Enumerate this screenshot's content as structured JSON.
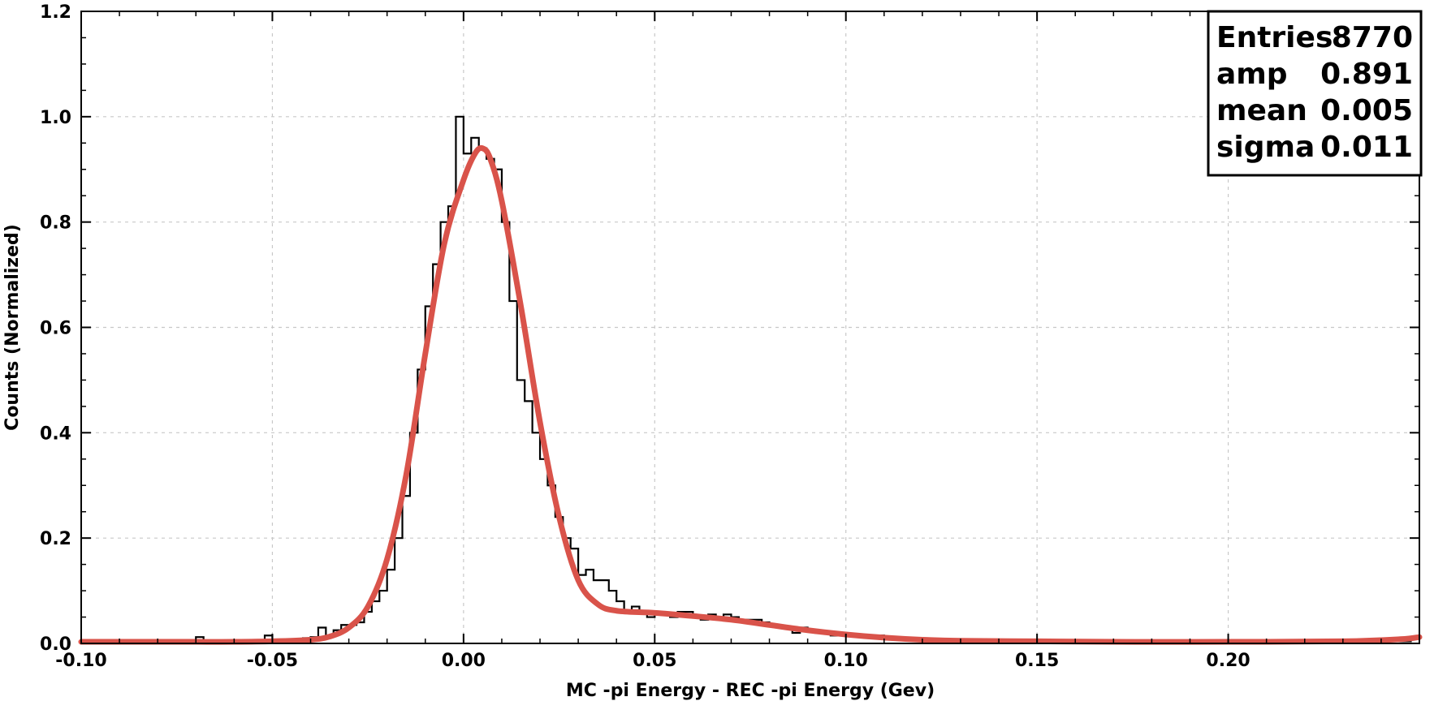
{
  "chart_data": {
    "type": "line",
    "xlabel": "MC -pi Energy - REC -pi Energy (Gev)",
    "ylabel": "Counts (Normalized)",
    "xlim": [
      -0.1,
      0.25
    ],
    "ylim": [
      0.0,
      1.2
    ],
    "x_ticks": [
      -0.1,
      -0.05,
      0.0,
      0.05,
      0.1,
      0.15,
      0.2
    ],
    "x_tick_labels": [
      "-0.10",
      "-0.05",
      "0.00",
      "0.05",
      "0.10",
      "0.15",
      "0.20"
    ],
    "y_ticks": [
      0.0,
      0.2,
      0.4,
      0.6,
      0.8,
      1.0,
      1.2
    ],
    "y_tick_labels": [
      "0.0",
      "0.2",
      "0.4",
      "0.6",
      "0.8",
      "1.0",
      "1.2"
    ],
    "grid": true,
    "histogram": {
      "bin_width": 0.002,
      "bin_centers": [
        -0.099,
        -0.097,
        -0.095,
        -0.093,
        -0.091,
        -0.089,
        -0.087,
        -0.085,
        -0.083,
        -0.081,
        -0.079,
        -0.077,
        -0.075,
        -0.073,
        -0.071,
        -0.069,
        -0.067,
        -0.065,
        -0.063,
        -0.061,
        -0.059,
        -0.057,
        -0.055,
        -0.053,
        -0.051,
        -0.049,
        -0.047,
        -0.045,
        -0.043,
        -0.041,
        -0.039,
        -0.037,
        -0.035,
        -0.033,
        -0.031,
        -0.029,
        -0.027,
        -0.025,
        -0.023,
        -0.021,
        -0.019,
        -0.017,
        -0.015,
        -0.013,
        -0.011,
        -0.009,
        -0.007,
        -0.005,
        -0.003,
        -0.001,
        0.001,
        0.003,
        0.005,
        0.007,
        0.009,
        0.011,
        0.013,
        0.015,
        0.017,
        0.019,
        0.021,
        0.023,
        0.025,
        0.027,
        0.029,
        0.031,
        0.033,
        0.035,
        0.037,
        0.039,
        0.041,
        0.043,
        0.045,
        0.047,
        0.049,
        0.051,
        0.053,
        0.055,
        0.057,
        0.059,
        0.061,
        0.063,
        0.065,
        0.067,
        0.069,
        0.071,
        0.073,
        0.075,
        0.077,
        0.079,
        0.081,
        0.083,
        0.085,
        0.087,
        0.089,
        0.091,
        0.093,
        0.095,
        0.097,
        0.099,
        0.101,
        0.103,
        0.105,
        0.107,
        0.109,
        0.111,
        0.113,
        0.115,
        0.117,
        0.119,
        0.121,
        0.123,
        0.125,
        0.127,
        0.129,
        0.131,
        0.133,
        0.135,
        0.137,
        0.139,
        0.141,
        0.143,
        0.145,
        0.147,
        0.149,
        0.151,
        0.153,
        0.155,
        0.157,
        0.159,
        0.161,
        0.163,
        0.165,
        0.167,
        0.169,
        0.171,
        0.173,
        0.175,
        0.177,
        0.179,
        0.181,
        0.183,
        0.185,
        0.187,
        0.189,
        0.191,
        0.193,
        0.195,
        0.197,
        0.199,
        0.201,
        0.203,
        0.205,
        0.207,
        0.209,
        0.211,
        0.213,
        0.215,
        0.217,
        0.219,
        0.221,
        0.223,
        0.225,
        0.227,
        0.229,
        0.231,
        0.233,
        0.235,
        0.237,
        0.239,
        0.241,
        0.243,
        0.245,
        0.247,
        0.249
      ],
      "values": [
        0.005,
        0.003,
        0.004,
        0.003,
        0.005,
        0.003,
        0.004,
        0.003,
        0.005,
        0.003,
        0.004,
        0.004,
        0.005,
        0.005,
        0.004,
        0.012,
        0.005,
        0.004,
        0.006,
        0.005,
        0.005,
        0.005,
        0.005,
        0.005,
        0.015,
        0.005,
        0.006,
        0.007,
        0.008,
        0.01,
        0.012,
        0.03,
        0.015,
        0.025,
        0.035,
        0.035,
        0.04,
        0.06,
        0.08,
        0.1,
        0.14,
        0.2,
        0.28,
        0.4,
        0.52,
        0.64,
        0.72,
        0.8,
        0.83,
        1.0,
        0.93,
        0.96,
        0.94,
        0.92,
        0.9,
        0.8,
        0.65,
        0.5,
        0.46,
        0.4,
        0.35,
        0.3,
        0.24,
        0.2,
        0.18,
        0.13,
        0.14,
        0.12,
        0.12,
        0.1,
        0.08,
        0.06,
        0.07,
        0.06,
        0.05,
        0.06,
        0.055,
        0.05,
        0.06,
        0.06,
        0.05,
        0.045,
        0.055,
        0.05,
        0.055,
        0.05,
        0.045,
        0.045,
        0.045,
        0.04,
        0.035,
        0.03,
        0.03,
        0.02,
        0.03,
        0.025,
        0.02,
        0.02,
        0.015,
        0.02,
        0.015,
        0.015,
        0.012,
        0.012,
        0.015,
        0.01,
        0.01,
        0.008,
        0.008,
        0.008,
        0.005,
        0.006,
        0.005,
        0.005,
        0.005,
        0.005,
        0.005,
        0.005,
        0.005,
        0.005,
        0.005,
        0.005,
        0.005,
        0.004,
        0.004,
        0.004,
        0.004,
        0.004,
        0.004,
        0.004,
        0.004,
        0.004,
        0.004,
        0.004,
        0.004,
        0.004,
        0.004,
        0.004,
        0.004,
        0.004,
        0.004,
        0.004,
        0.004,
        0.004,
        0.004,
        0.004,
        0.004,
        0.004,
        0.004,
        0.004,
        0.004,
        0.004,
        0.004,
        0.004,
        0.004,
        0.004,
        0.004,
        0.004,
        0.004,
        0.004,
        0.004,
        0.004,
        0.004,
        0.004,
        0.004,
        0.004,
        0.004,
        0.004,
        0.004,
        0.004,
        0.004,
        0.004,
        0.004,
        0.004
      ]
    },
    "fit": {
      "x": [
        -0.1,
        -0.09,
        -0.08,
        -0.07,
        -0.06,
        -0.05,
        -0.04,
        -0.035,
        -0.03,
        -0.025,
        -0.02,
        -0.015,
        -0.01,
        -0.005,
        0.0,
        0.003,
        0.005,
        0.007,
        0.01,
        0.015,
        0.02,
        0.025,
        0.03,
        0.035,
        0.04,
        0.05,
        0.06,
        0.07,
        0.08,
        0.09,
        0.1,
        0.11,
        0.12,
        0.13,
        0.15,
        0.17,
        0.2,
        0.23,
        0.245,
        0.25
      ],
      "y": [
        0.003,
        0.003,
        0.003,
        0.003,
        0.003,
        0.004,
        0.007,
        0.013,
        0.03,
        0.07,
        0.16,
        0.32,
        0.55,
        0.76,
        0.88,
        0.93,
        0.94,
        0.92,
        0.84,
        0.64,
        0.42,
        0.24,
        0.12,
        0.075,
        0.062,
        0.058,
        0.052,
        0.045,
        0.035,
        0.025,
        0.017,
        0.011,
        0.007,
        0.005,
        0.004,
        0.003,
        0.003,
        0.004,
        0.008,
        0.012
      ]
    },
    "stats": {
      "rows": [
        {
          "label": "Entries",
          "value": "8770"
        },
        {
          "label": "amp",
          "value": "0.891"
        },
        {
          "label": "mean",
          "value": "0.005"
        },
        {
          "label": "sigma",
          "value": "0.011"
        }
      ]
    },
    "colors": {
      "histogram": "#000000",
      "fit": "#d9534a",
      "grid": "#c8c8c8"
    }
  }
}
